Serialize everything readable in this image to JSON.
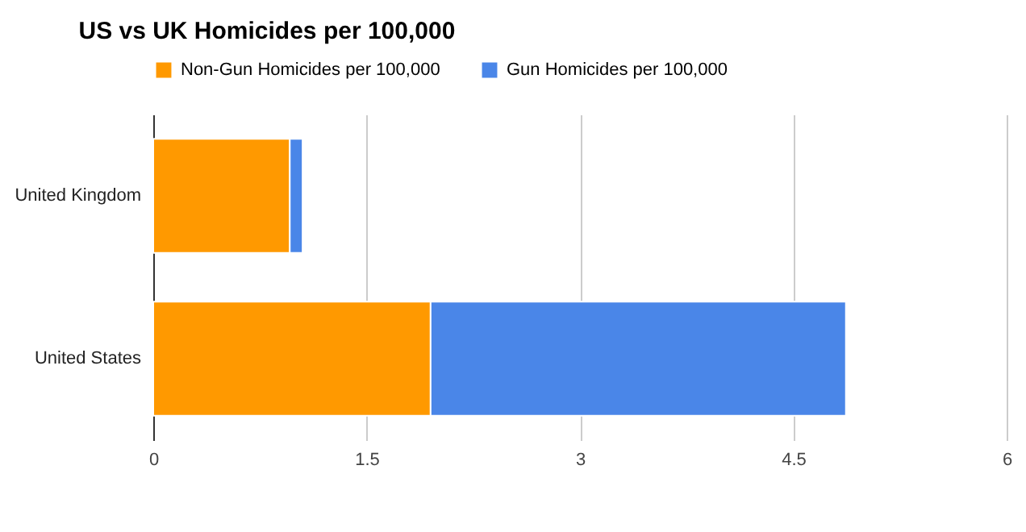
{
  "chart_data": {
    "type": "bar",
    "title": "US vs UK Homicides per 100,000",
    "orientation": "horizontal",
    "stacked": true,
    "categories": [
      "United Kingdom",
      "United States"
    ],
    "series": [
      {
        "name": "Non-Gun Homicides per 100,000",
        "color": "#ff9900",
        "values": [
          0.96,
          1.95
        ]
      },
      {
        "name": "Gun Homicides per 100,000",
        "color": "#4a86e8",
        "values": [
          0.09,
          2.92
        ]
      }
    ],
    "xlim": [
      0,
      6
    ],
    "xticks": [
      0,
      1.5,
      3,
      4.5,
      6
    ],
    "grid": "x",
    "legend": "top left"
  }
}
